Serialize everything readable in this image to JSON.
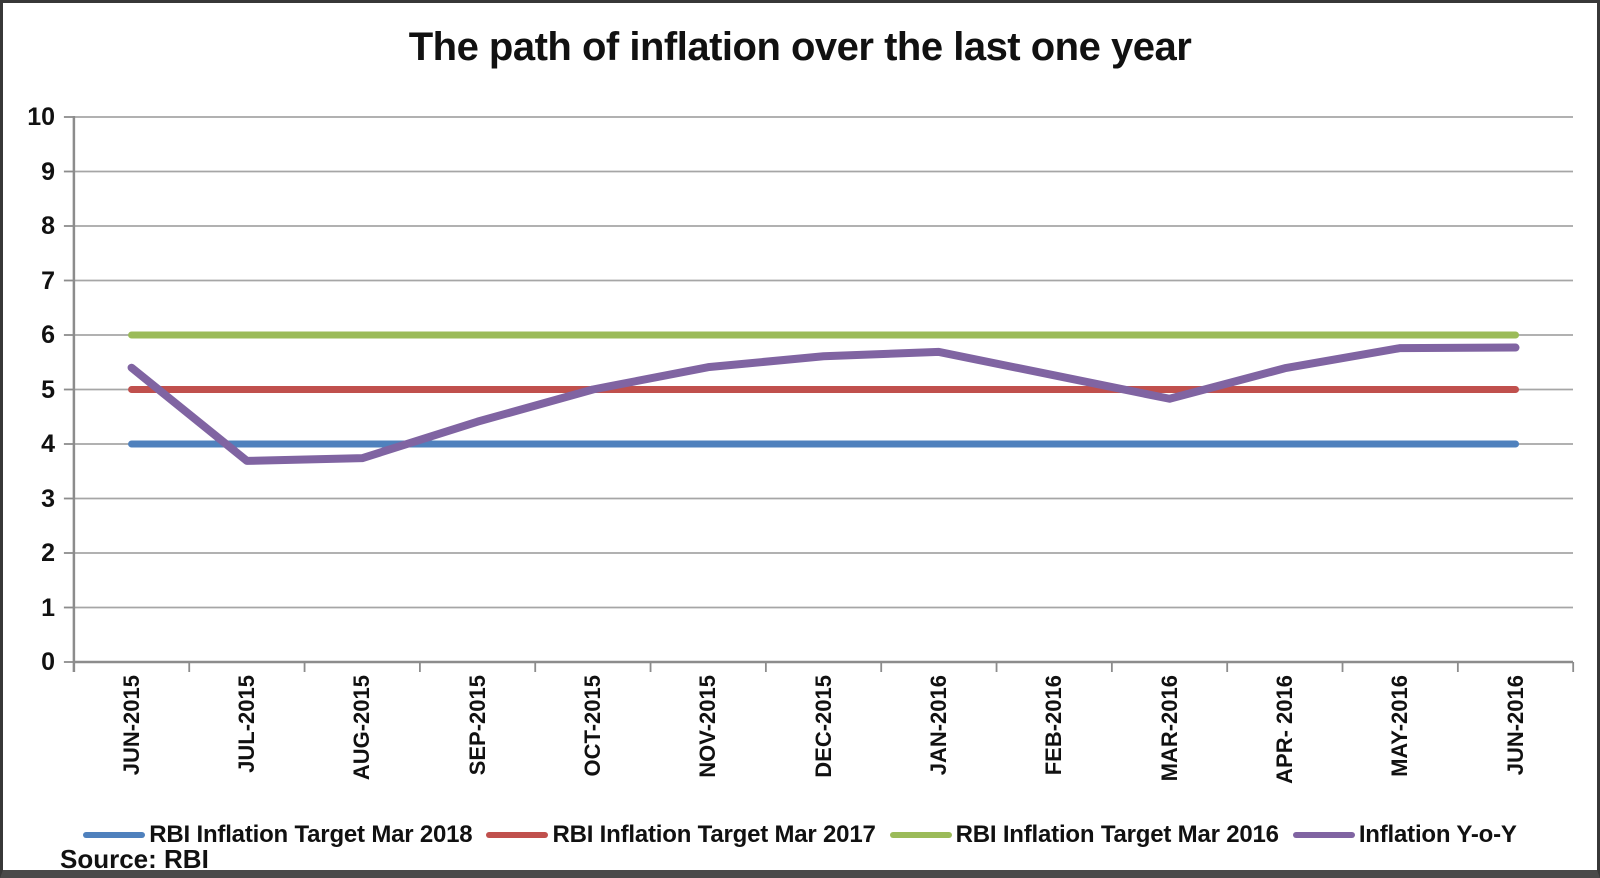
{
  "chart_data": {
    "type": "line",
    "title": "The path of inflation over the last one year",
    "source_note": "Source: RBI",
    "categories": [
      "JUN-2015",
      "JUL-2015",
      "AUG-2015",
      "SEP-2015",
      "OCT-2015",
      "NOV-2015",
      "DEC-2015",
      "JAN-2016",
      "FEB-2016",
      "MAR-2016",
      "APR- 2016",
      "MAY-2016",
      "JUN-2016"
    ],
    "series": [
      {
        "name": "RBI Inflation Target Mar 2018",
        "color": "#4F81BD",
        "values": [
          4,
          4,
          4,
          4,
          4,
          4,
          4,
          4,
          4,
          4,
          4,
          4,
          4
        ]
      },
      {
        "name": "RBI Inflation Target Mar 2017",
        "color": "#C0504D",
        "values": [
          5,
          5,
          5,
          5,
          5,
          5,
          5,
          5,
          5,
          5,
          5,
          5,
          5
        ]
      },
      {
        "name": "RBI Inflation Target Mar 2016",
        "color": "#9BBB59",
        "values": [
          6,
          6,
          6,
          6,
          6,
          6,
          6,
          6,
          6,
          6,
          6,
          6,
          6
        ]
      },
      {
        "name": "Inflation Y-o-Y",
        "color": "#8064A2",
        "values": [
          5.4,
          3.69,
          3.74,
          4.41,
          5.0,
          5.41,
          5.61,
          5.69,
          5.26,
          4.83,
          5.39,
          5.76,
          5.77
        ]
      }
    ],
    "xlabel": "",
    "ylabel": "",
    "ylim": [
      0,
      10
    ],
    "yticks": [
      0,
      1,
      2,
      3,
      4,
      5,
      6,
      7,
      8,
      9,
      10
    ],
    "grid": true,
    "legend_position": "bottom",
    "axis_colors": {
      "gridline": "#A6A6A6",
      "axis": "#8C8C8C"
    }
  }
}
